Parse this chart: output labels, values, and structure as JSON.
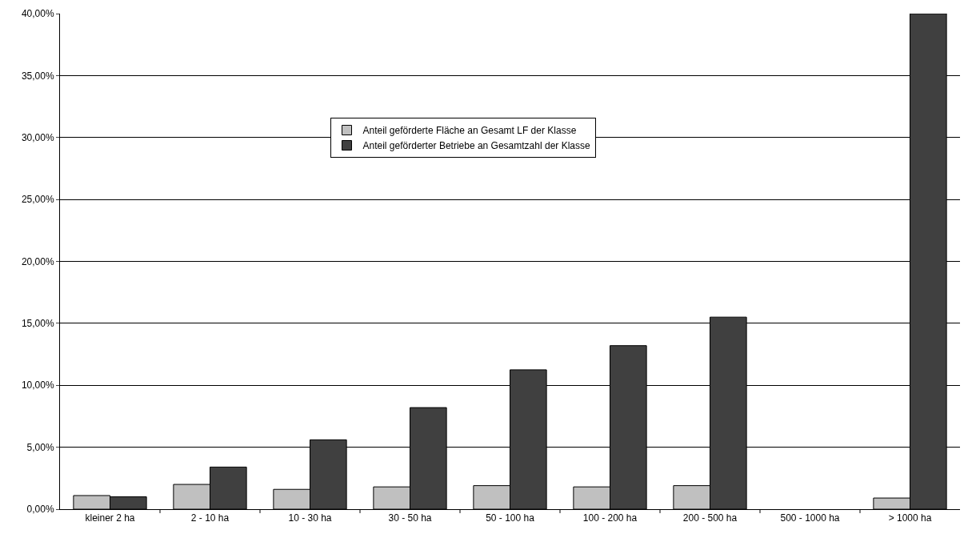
{
  "chart_data": {
    "type": "bar",
    "categories": [
      "kleiner 2 ha",
      "2 - 10 ha",
      "10 - 30 ha",
      "30 - 50 ha",
      "50 - 100 ha",
      "100 - 200 ha",
      "200 - 500 ha",
      "500 - 1000 ha",
      "> 1000 ha"
    ],
    "series": [
      {
        "name": "Anteil geförderte Fläche an Gesamt LF der Klasse",
        "color": "#c0c0c0",
        "values": [
          1.1,
          2.0,
          1.6,
          1.8,
          1.9,
          1.8,
          1.9,
          null,
          0.9
        ]
      },
      {
        "name": "Anteil geförderter Betriebe an Gesamtzahl der Klasse",
        "color": "#404040",
        "values": [
          1.0,
          3.4,
          5.6,
          8.2,
          11.25,
          13.2,
          15.5,
          null,
          40
        ]
      }
    ],
    "ylim": [
      0,
      40
    ],
    "yticks": [
      {
        "value": 0,
        "label": "0,00%"
      },
      {
        "value": 5,
        "label": "5,00%"
      },
      {
        "value": 10,
        "label": "10,00%"
      },
      {
        "value": 15,
        "label": "15,00%"
      },
      {
        "value": 20,
        "label": "20,00%"
      },
      {
        "value": 25,
        "label": "25,00%"
      },
      {
        "value": 30,
        "label": "30,00%"
      },
      {
        "value": 35,
        "label": "35,00%"
      },
      {
        "value": 40,
        "label": "40,00%"
      }
    ],
    "grid": "y",
    "legend": "center"
  }
}
